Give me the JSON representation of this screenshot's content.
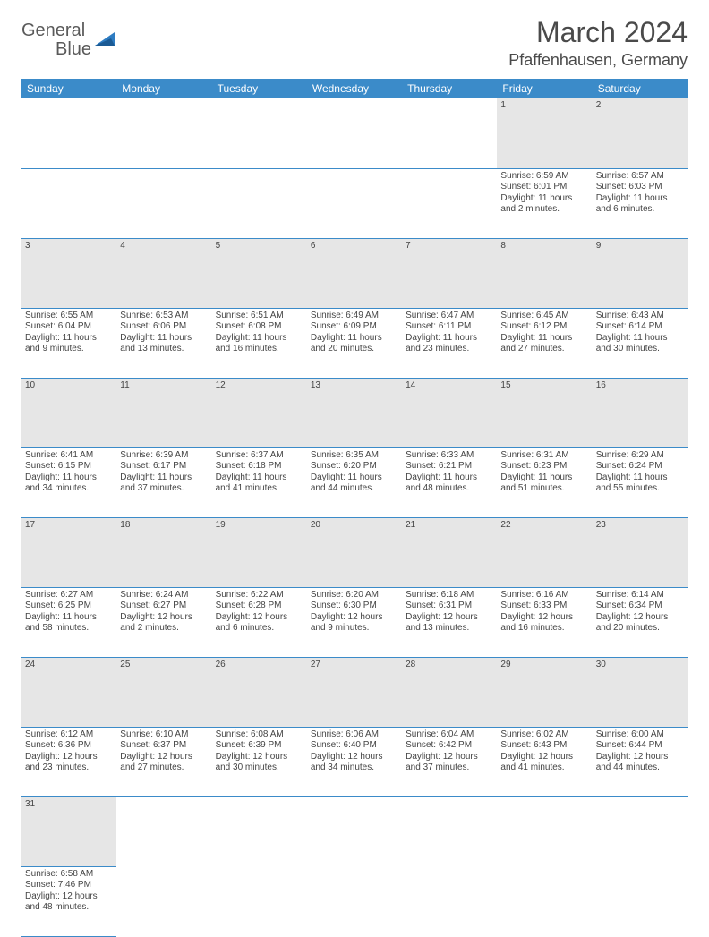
{
  "logo": {
    "text1": "General",
    "text2": "Blue"
  },
  "title": "March 2024",
  "location": "Pfaffenhausen, Germany",
  "colors": {
    "header_bg": "#3b8bc9",
    "header_text": "#ffffff",
    "daynum_bg": "#e6e6e6",
    "border": "#3b8bc9",
    "text": "#444444",
    "logo_gray": "#5a5a5a",
    "logo_blue": "#2e7cc2"
  },
  "weekdays": [
    "Sunday",
    "Monday",
    "Tuesday",
    "Wednesday",
    "Thursday",
    "Friday",
    "Saturday"
  ],
  "font": {
    "body_pt": 10,
    "daynum_pt": 11,
    "header_pt": 12,
    "title_pt": 32,
    "location_pt": 18
  },
  "weeks": [
    [
      null,
      null,
      null,
      null,
      null,
      {
        "d": "1",
        "sr": "Sunrise: 6:59 AM",
        "ss": "Sunset: 6:01 PM",
        "dl": "Daylight: 11 hours and 2 minutes."
      },
      {
        "d": "2",
        "sr": "Sunrise: 6:57 AM",
        "ss": "Sunset: 6:03 PM",
        "dl": "Daylight: 11 hours and 6 minutes."
      }
    ],
    [
      {
        "d": "3",
        "sr": "Sunrise: 6:55 AM",
        "ss": "Sunset: 6:04 PM",
        "dl": "Daylight: 11 hours and 9 minutes."
      },
      {
        "d": "4",
        "sr": "Sunrise: 6:53 AM",
        "ss": "Sunset: 6:06 PM",
        "dl": "Daylight: 11 hours and 13 minutes."
      },
      {
        "d": "5",
        "sr": "Sunrise: 6:51 AM",
        "ss": "Sunset: 6:08 PM",
        "dl": "Daylight: 11 hours and 16 minutes."
      },
      {
        "d": "6",
        "sr": "Sunrise: 6:49 AM",
        "ss": "Sunset: 6:09 PM",
        "dl": "Daylight: 11 hours and 20 minutes."
      },
      {
        "d": "7",
        "sr": "Sunrise: 6:47 AM",
        "ss": "Sunset: 6:11 PM",
        "dl": "Daylight: 11 hours and 23 minutes."
      },
      {
        "d": "8",
        "sr": "Sunrise: 6:45 AM",
        "ss": "Sunset: 6:12 PM",
        "dl": "Daylight: 11 hours and 27 minutes."
      },
      {
        "d": "9",
        "sr": "Sunrise: 6:43 AM",
        "ss": "Sunset: 6:14 PM",
        "dl": "Daylight: 11 hours and 30 minutes."
      }
    ],
    [
      {
        "d": "10",
        "sr": "Sunrise: 6:41 AM",
        "ss": "Sunset: 6:15 PM",
        "dl": "Daylight: 11 hours and 34 minutes."
      },
      {
        "d": "11",
        "sr": "Sunrise: 6:39 AM",
        "ss": "Sunset: 6:17 PM",
        "dl": "Daylight: 11 hours and 37 minutes."
      },
      {
        "d": "12",
        "sr": "Sunrise: 6:37 AM",
        "ss": "Sunset: 6:18 PM",
        "dl": "Daylight: 11 hours and 41 minutes."
      },
      {
        "d": "13",
        "sr": "Sunrise: 6:35 AM",
        "ss": "Sunset: 6:20 PM",
        "dl": "Daylight: 11 hours and 44 minutes."
      },
      {
        "d": "14",
        "sr": "Sunrise: 6:33 AM",
        "ss": "Sunset: 6:21 PM",
        "dl": "Daylight: 11 hours and 48 minutes."
      },
      {
        "d": "15",
        "sr": "Sunrise: 6:31 AM",
        "ss": "Sunset: 6:23 PM",
        "dl": "Daylight: 11 hours and 51 minutes."
      },
      {
        "d": "16",
        "sr": "Sunrise: 6:29 AM",
        "ss": "Sunset: 6:24 PM",
        "dl": "Daylight: 11 hours and 55 minutes."
      }
    ],
    [
      {
        "d": "17",
        "sr": "Sunrise: 6:27 AM",
        "ss": "Sunset: 6:25 PM",
        "dl": "Daylight: 11 hours and 58 minutes."
      },
      {
        "d": "18",
        "sr": "Sunrise: 6:24 AM",
        "ss": "Sunset: 6:27 PM",
        "dl": "Daylight: 12 hours and 2 minutes."
      },
      {
        "d": "19",
        "sr": "Sunrise: 6:22 AM",
        "ss": "Sunset: 6:28 PM",
        "dl": "Daylight: 12 hours and 6 minutes."
      },
      {
        "d": "20",
        "sr": "Sunrise: 6:20 AM",
        "ss": "Sunset: 6:30 PM",
        "dl": "Daylight: 12 hours and 9 minutes."
      },
      {
        "d": "21",
        "sr": "Sunrise: 6:18 AM",
        "ss": "Sunset: 6:31 PM",
        "dl": "Daylight: 12 hours and 13 minutes."
      },
      {
        "d": "22",
        "sr": "Sunrise: 6:16 AM",
        "ss": "Sunset: 6:33 PM",
        "dl": "Daylight: 12 hours and 16 minutes."
      },
      {
        "d": "23",
        "sr": "Sunrise: 6:14 AM",
        "ss": "Sunset: 6:34 PM",
        "dl": "Daylight: 12 hours and 20 minutes."
      }
    ],
    [
      {
        "d": "24",
        "sr": "Sunrise: 6:12 AM",
        "ss": "Sunset: 6:36 PM",
        "dl": "Daylight: 12 hours and 23 minutes."
      },
      {
        "d": "25",
        "sr": "Sunrise: 6:10 AM",
        "ss": "Sunset: 6:37 PM",
        "dl": "Daylight: 12 hours and 27 minutes."
      },
      {
        "d": "26",
        "sr": "Sunrise: 6:08 AM",
        "ss": "Sunset: 6:39 PM",
        "dl": "Daylight: 12 hours and 30 minutes."
      },
      {
        "d": "27",
        "sr": "Sunrise: 6:06 AM",
        "ss": "Sunset: 6:40 PM",
        "dl": "Daylight: 12 hours and 34 minutes."
      },
      {
        "d": "28",
        "sr": "Sunrise: 6:04 AM",
        "ss": "Sunset: 6:42 PM",
        "dl": "Daylight: 12 hours and 37 minutes."
      },
      {
        "d": "29",
        "sr": "Sunrise: 6:02 AM",
        "ss": "Sunset: 6:43 PM",
        "dl": "Daylight: 12 hours and 41 minutes."
      },
      {
        "d": "30",
        "sr": "Sunrise: 6:00 AM",
        "ss": "Sunset: 6:44 PM",
        "dl": "Daylight: 12 hours and 44 minutes."
      }
    ],
    [
      {
        "d": "31",
        "sr": "Sunrise: 6:58 AM",
        "ss": "Sunset: 7:46 PM",
        "dl": "Daylight: 12 hours and 48 minutes."
      },
      null,
      null,
      null,
      null,
      null,
      null
    ]
  ]
}
